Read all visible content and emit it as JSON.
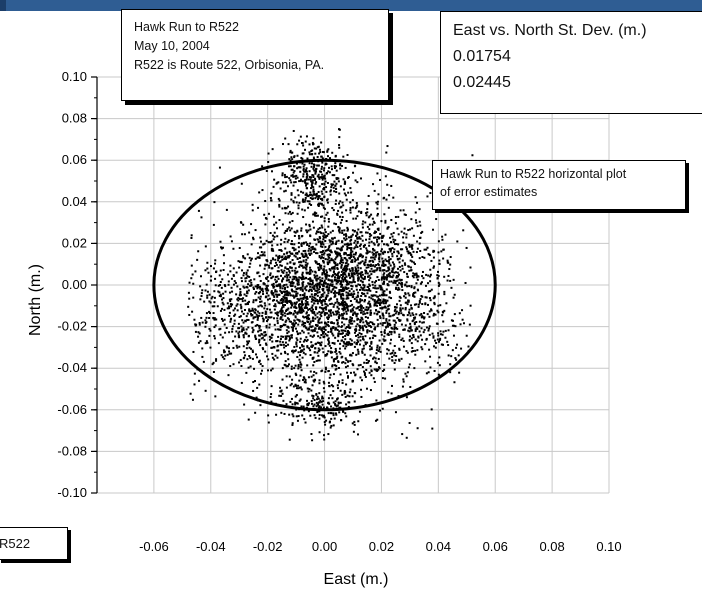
{
  "info_box": {
    "line1": "Hawk Run to R522",
    "line2": "May 10, 2004",
    "line3": "R522 is Route 522, Orbisonia, PA."
  },
  "stdev_box": {
    "title": "East vs. North St. Dev. (m.)",
    "east_value": "0.01754",
    "north_value": "0.02445"
  },
  "callout": {
    "line1": "Hawk Run to R522 horizontal plot",
    "line2": "of error estimates"
  },
  "route_label": "R522",
  "chart_data": {
    "type": "scatter",
    "title": "",
    "xlabel": "East (m.)",
    "ylabel": "North (m.)",
    "xlim": [
      -0.08,
      0.1
    ],
    "ylim": [
      -0.1,
      0.1
    ],
    "x_tick_labels": [
      "-0.06",
      "-0.04",
      "-0.02",
      "0.00",
      "0.02",
      "0.04",
      "0.06",
      "0.08",
      "0.10"
    ],
    "y_tick_labels": [
      "0.10",
      "0.08",
      "0.06",
      "0.04",
      "0.02",
      "0.00",
      "-0.02",
      "-0.04",
      "-0.06",
      "-0.08",
      "-0.10"
    ],
    "grid": true,
    "ellipse": {
      "center": [
        0.0,
        0.0
      ],
      "radius_east": 0.06,
      "radius_north": 0.06
    },
    "clusters": [
      {
        "center": [
          0.001,
          -0.005
        ],
        "sd": [
          0.017,
          0.024
        ],
        "n": 2600
      },
      {
        "center": [
          -0.004,
          0.052
        ],
        "sd": [
          0.006,
          0.009
        ],
        "n": 350
      },
      {
        "center": [
          0.018,
          0.012
        ],
        "sd": [
          0.013,
          0.01
        ],
        "n": 450
      },
      {
        "center": [
          -0.028,
          -0.012
        ],
        "sd": [
          0.014,
          0.014
        ],
        "n": 500
      },
      {
        "center": [
          0.032,
          -0.022
        ],
        "sd": [
          0.01,
          0.01
        ],
        "n": 250
      },
      {
        "center": [
          -0.002,
          -0.058
        ],
        "sd": [
          0.006,
          0.006
        ],
        "n": 150
      }
    ],
    "scatter_extent": {
      "x": [
        -0.048,
        0.052
      ],
      "y": [
        -0.075,
        0.075
      ]
    },
    "colors": {
      "points": "#000000",
      "grid": "#c8c8c8",
      "header_bar": "#2f5d93"
    }
  }
}
